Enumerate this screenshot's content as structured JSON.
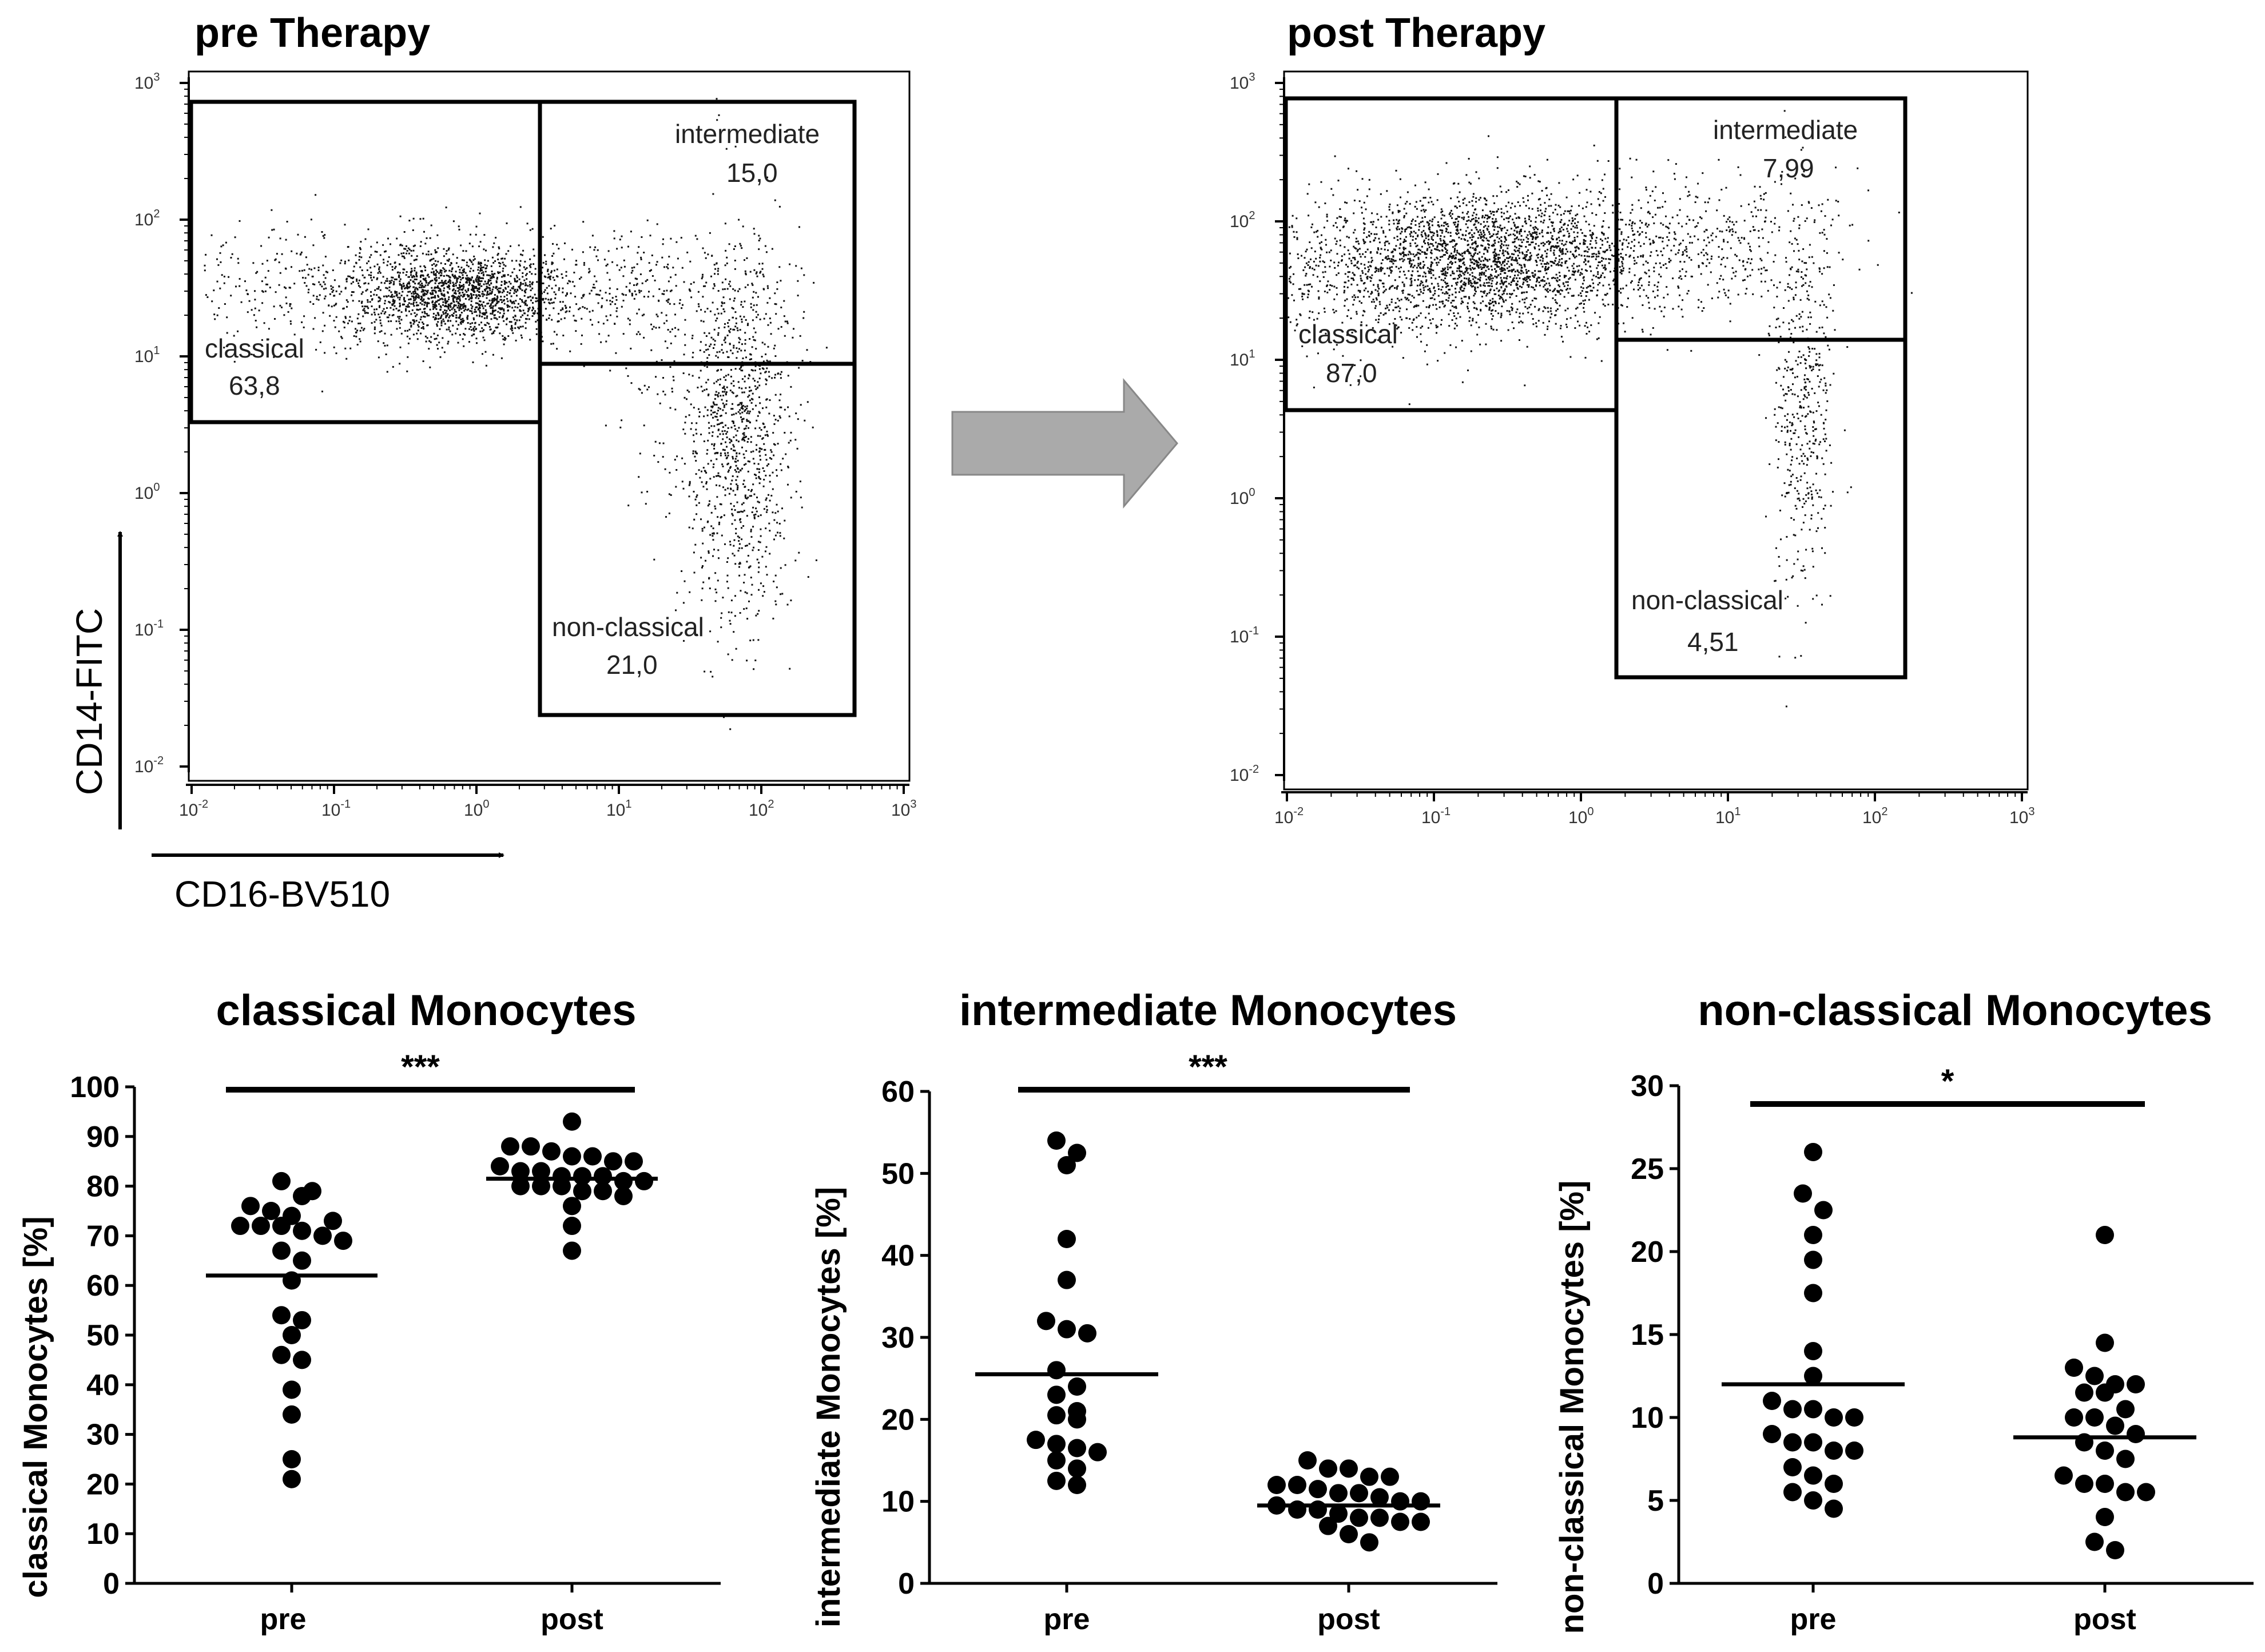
{
  "flow_panels": [
    {
      "title": "pre Therapy",
      "x_axis_label": "CD16-BV510",
      "y_axis_label": "CD14-FITC",
      "tick_labels": [
        "10",
        "10",
        "10",
        "10",
        "10",
        "10"
      ],
      "tick_exponents": [
        "-2",
        "-1",
        "0",
        "1",
        "2",
        "3"
      ],
      "gates": [
        {
          "name": "classical",
          "value": "63,8"
        },
        {
          "name": "intermediate",
          "value": "15,0"
        },
        {
          "name": "non-classical",
          "value": "21,0"
        }
      ]
    },
    {
      "title": "post Therapy",
      "tick_labels": [
        "10",
        "10",
        "10",
        "10",
        "10",
        "10"
      ],
      "tick_exponents": [
        "-2",
        "-1",
        "0",
        "1",
        "2",
        "3"
      ],
      "gates": [
        {
          "name": "classical",
          "value": "87,0"
        },
        {
          "name": "intermediate",
          "value": "7,99"
        },
        {
          "name": "non-classical",
          "value": "4,51"
        }
      ]
    }
  ],
  "chart_data": [
    {
      "type": "scatter",
      "title": "classical Monocytes",
      "ylabel": "classical Monocytes [%]",
      "categories": [
        "pre",
        "post"
      ],
      "ylim": [
        0,
        100
      ],
      "yticks": [
        0,
        10,
        20,
        30,
        40,
        50,
        60,
        70,
        80,
        90,
        100
      ],
      "significance": "***",
      "series": [
        {
          "name": "pre",
          "values": [
            81,
            78,
            76,
            75,
            74,
            79,
            73,
            72,
            72,
            72,
            71,
            70,
            69,
            67,
            65,
            61,
            54,
            53,
            50,
            46,
            45,
            39,
            34,
            25,
            21
          ],
          "mean": 62
        },
        {
          "name": "post",
          "values": [
            93,
            88,
            88,
            87,
            86,
            86,
            85,
            85,
            84,
            83,
            83,
            82,
            82,
            82,
            81,
            81,
            80,
            80,
            80,
            79,
            79,
            78,
            76,
            72,
            67
          ],
          "mean": 81.5
        }
      ]
    },
    {
      "type": "scatter",
      "title": "intermediate Monocytes",
      "ylabel": "intermediate Monocytes [%]",
      "categories": [
        "pre",
        "post"
      ],
      "ylim": [
        0,
        60
      ],
      "yticks": [
        0,
        10,
        20,
        30,
        40,
        50,
        60
      ],
      "significance": "***",
      "series": [
        {
          "name": "pre",
          "values": [
            54,
            52.5,
            51,
            42,
            37,
            32,
            31,
            30.5,
            26,
            24,
            23,
            21,
            20.5,
            20,
            17.5,
            17,
            16.5,
            16,
            15,
            14,
            12.5,
            12
          ],
          "mean": 25.5
        },
        {
          "name": "post",
          "values": [
            15,
            14,
            14,
            13,
            13,
            12,
            12,
            11.5,
            11,
            11,
            10.5,
            10,
            10,
            9.5,
            9,
            9,
            8.5,
            8,
            8,
            7.5,
            7.5,
            7,
            6,
            5
          ],
          "mean": 9.5
        }
      ]
    },
    {
      "type": "scatter",
      "title": "non-classical Monocytes",
      "ylabel": "non-classical Monocytes [%]",
      "categories": [
        "pre",
        "post"
      ],
      "ylim": [
        0,
        30
      ],
      "yticks": [
        0,
        5,
        10,
        15,
        20,
        25,
        30
      ],
      "significance": "*",
      "series": [
        {
          "name": "pre",
          "values": [
            26,
            23.5,
            22.5,
            21,
            19.5,
            17.5,
            14,
            12.5,
            11,
            10.5,
            10.5,
            10,
            10,
            9,
            8.5,
            8.5,
            8,
            8,
            7,
            6.5,
            6,
            5.5,
            5,
            4.5
          ],
          "mean": 12
        },
        {
          "name": "post",
          "values": [
            21,
            14.5,
            13,
            12.5,
            12,
            12,
            11.5,
            11.5,
            10.5,
            10,
            10,
            9.5,
            9,
            8.5,
            8,
            7.5,
            6.5,
            6,
            6,
            5.5,
            5.5,
            4,
            2.5,
            2
          ],
          "mean": 8.8
        }
      ]
    }
  ]
}
